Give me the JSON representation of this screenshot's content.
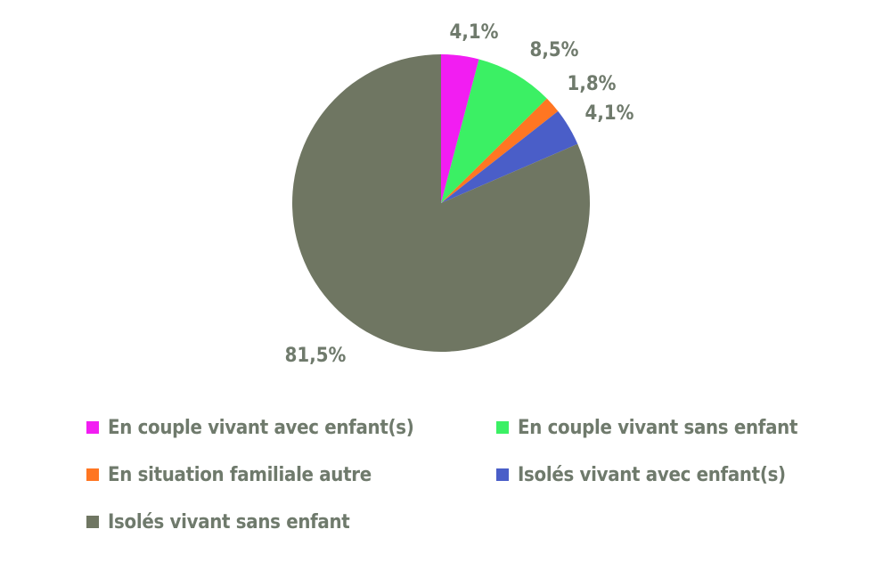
{
  "chart_data": {
    "type": "pie",
    "title": "",
    "categories": [
      "En couple vivant avec enfant(s)",
      "En couple vivant sans enfant",
      "En situation familiale autre",
      "Isolés vivant avec enfant(s)",
      "Isolés vivant sans enfant"
    ],
    "values": [
      4.1,
      8.5,
      1.8,
      4.1,
      81.5
    ],
    "data_labels": [
      "4,1%",
      "8,5%",
      "1,8%",
      "4,1%",
      "81,5%"
    ],
    "colors": [
      "#f21df2",
      "#3bf064",
      "#ff7622",
      "#4a5ec8",
      "#6f7662"
    ],
    "legend_position": "bottom"
  },
  "label_color": "#6f7a6c"
}
